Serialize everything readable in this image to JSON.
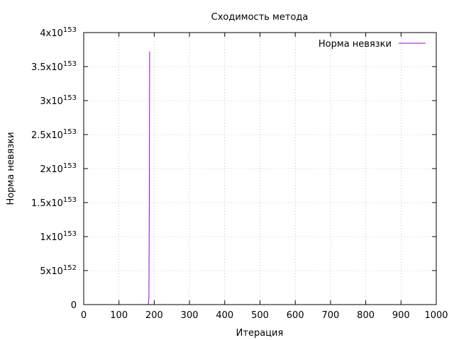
{
  "chart_data": {
    "type": "line",
    "title": "Сходимость метода",
    "xlabel": "Итерация",
    "ylabel": "Норма невязки",
    "xlim": [
      0,
      1000
    ],
    "ylim": [
      0,
      4e+153
    ],
    "x_ticks": [
      "0",
      "100",
      "200",
      "300",
      "400",
      "500",
      "600",
      "700",
      "800",
      "900",
      "1000"
    ],
    "y_ticks": [
      {
        "value": 0,
        "mantissa": "0",
        "exponent": ""
      },
      {
        "value": 5e+152,
        "mantissa": "5x10",
        "exponent": "152"
      },
      {
        "value": 1e+153,
        "mantissa": "1x10",
        "exponent": "153"
      },
      {
        "value": 1.5e+153,
        "mantissa": "1.5x10",
        "exponent": "153"
      },
      {
        "value": 2e+153,
        "mantissa": "2x10",
        "exponent": "153"
      },
      {
        "value": 2.5e+153,
        "mantissa": "2.5x10",
        "exponent": "153"
      },
      {
        "value": 3e+153,
        "mantissa": "3x10",
        "exponent": "153"
      },
      {
        "value": 3.5e+153,
        "mantissa": "3.5x10",
        "exponent": "153"
      },
      {
        "value": 4e+153,
        "mantissa": "4x10",
        "exponent": "153"
      }
    ],
    "grid": true,
    "legend_position": "top-right",
    "series": [
      {
        "name": "Норма невязки",
        "color": "#9400d3",
        "points": [
          [
            0,
            0
          ],
          [
            183,
            0
          ],
          [
            185,
            1e+152
          ],
          [
            186,
            1.5e+153
          ],
          [
            187,
            3.72e+153
          ]
        ]
      }
    ]
  }
}
